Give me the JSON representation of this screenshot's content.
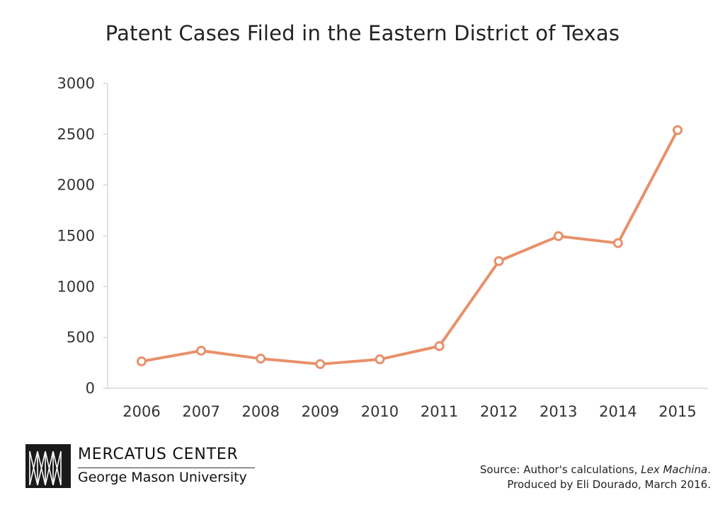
{
  "chart_data": {
    "type": "line",
    "title": "Patent Cases Filed in the Eastern District of Texas",
    "xlabel": "",
    "ylabel": "",
    "categories": [
      "2006",
      "2007",
      "2008",
      "2009",
      "2010",
      "2011",
      "2012",
      "2013",
      "2014",
      "2015"
    ],
    "series": [
      {
        "values": [
          265,
          370,
          292,
          238,
          285,
          415,
          1252,
          1497,
          1429,
          2541
        ]
      }
    ],
    "ylim": [
      0,
      3000
    ],
    "yticks": [
      "0",
      "500",
      "1000",
      "1500",
      "2000",
      "2500",
      "3000"
    ],
    "grid": false,
    "legend": "none",
    "line_color": "#E8906A"
  },
  "footer": {
    "org_name": "MERCATUS CENTER",
    "org_subtitle": "George Mason University",
    "source_prefix": "Source: Author's calculations, ",
    "source_italic": "Lex Machina",
    "source_suffix": ".",
    "credit": "Produced by Eli Dourado, March 2016."
  }
}
